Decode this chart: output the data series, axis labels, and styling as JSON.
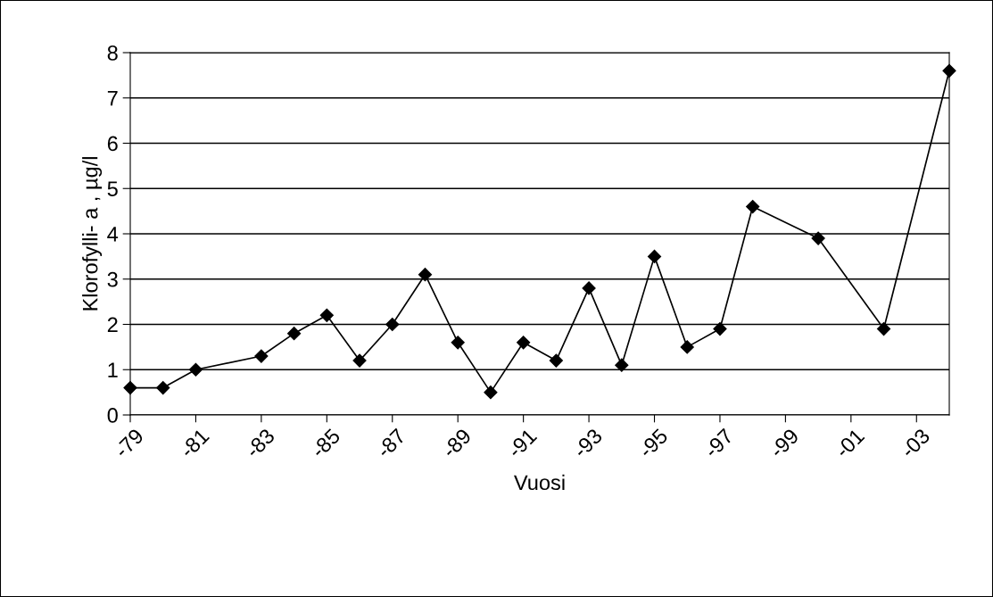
{
  "chart_data": {
    "type": "line",
    "xlabel": "Vuosi",
    "ylabel": "Klorofylli- a , µg/l",
    "categories": [
      "-79",
      null,
      "-81",
      null,
      "-83",
      null,
      "-85",
      null,
      "-87",
      null,
      "-89",
      null,
      "-91",
      null,
      "-93",
      null,
      "-95",
      null,
      "-97",
      null,
      "-99",
      null,
      "-01",
      null,
      "-03",
      null
    ],
    "series": [
      {
        "color": "#000000",
        "values": [
          0.6,
          0.6,
          1.0,
          null,
          1.3,
          1.8,
          2.2,
          1.2,
          2.0,
          3.1,
          1.6,
          0.5,
          1.6,
          1.2,
          2.8,
          1.1,
          3.5,
          1.5,
          1.9,
          4.6,
          null,
          3.9,
          null,
          1.9,
          null,
          7.6
        ]
      }
    ],
    "ylim": [
      0,
      8
    ],
    "yticks": [
      0,
      1,
      2,
      3,
      4,
      5,
      6,
      7,
      8
    ],
    "grid": "y",
    "marker": "diamond",
    "line_style": "solid"
  }
}
